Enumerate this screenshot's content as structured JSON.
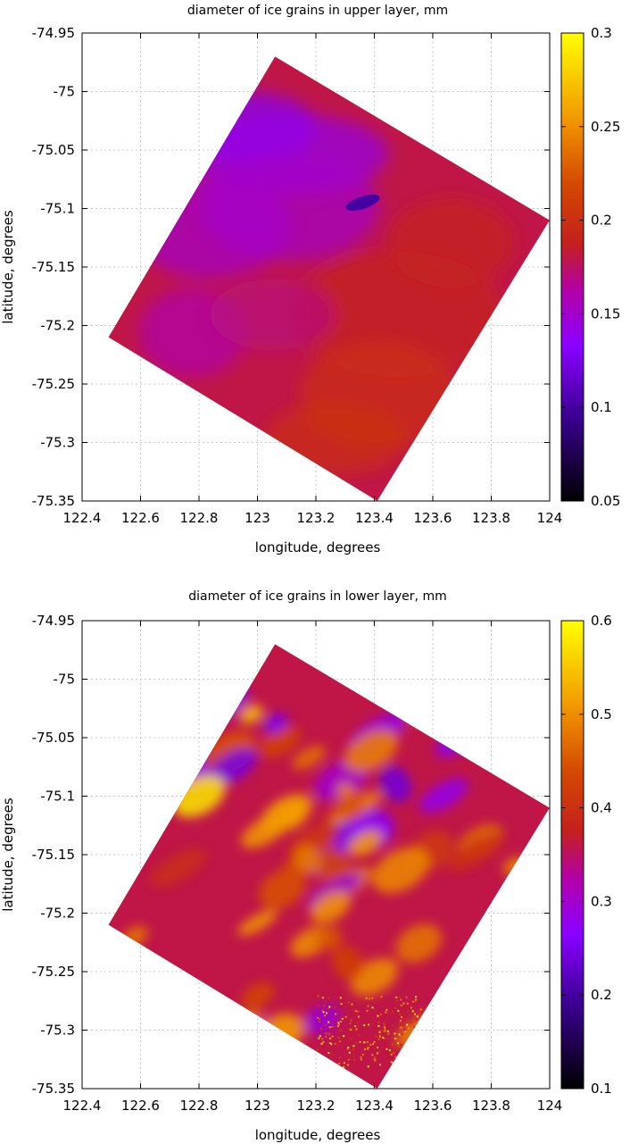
{
  "chart_data": [
    {
      "type": "heatmap",
      "title": "diameter of ice grains in upper layer, mm",
      "xlabel": "longitude, degrees",
      "ylabel": "latitude, degrees",
      "xlim": [
        122.4,
        124
      ],
      "ylim": [
        -75.35,
        -74.95
      ],
      "xticks": [
        "122.4",
        "122.6",
        "122.8",
        "123",
        "123.2",
        "123.4",
        "123.6",
        "123.8",
        "124"
      ],
      "yticks": [
        "-74.95",
        "-75",
        "-75.05",
        "-75.1",
        "-75.15",
        "-75.2",
        "-75.25",
        "-75.3",
        "-75.35"
      ],
      "colorbar": {
        "range": [
          0.05,
          0.3
        ],
        "ticks": [
          "0.3",
          "0.25",
          "0.2",
          "0.15",
          "0.1",
          "0.05"
        ],
        "colormap": "black-purple-red-orange-yellow"
      },
      "grid": true,
      "footprint": [
        [
          123.06,
          -74.97
        ],
        [
          124.0,
          -75.11
        ],
        [
          123.41,
          -75.35
        ],
        [
          122.49,
          -75.21
        ]
      ],
      "dominant_value": 0.18
    },
    {
      "type": "heatmap",
      "title": "diameter of ice grains in lower layer, mm",
      "xlabel": "longitude, degrees",
      "ylabel": "latitude, degrees",
      "xlim": [
        122.4,
        124
      ],
      "ylim": [
        -75.35,
        -74.95
      ],
      "xticks": [
        "122.4",
        "122.6",
        "122.8",
        "123",
        "123.2",
        "123.4",
        "123.6",
        "123.8",
        "124"
      ],
      "yticks": [
        "-74.95",
        "-75",
        "-75.05",
        "-75.1",
        "-75.15",
        "-75.2",
        "-75.25",
        "-75.3",
        "-75.35"
      ],
      "colorbar": {
        "range": [
          0.1,
          0.6
        ],
        "ticks": [
          "0.6",
          "0.5",
          "0.4",
          "0.3",
          "0.2",
          "0.1"
        ],
        "colormap": "black-purple-red-orange-yellow"
      },
      "grid": true,
      "footprint": [
        [
          123.06,
          -74.97
        ],
        [
          124.0,
          -75.11
        ],
        [
          123.41,
          -75.35
        ],
        [
          122.49,
          -75.21
        ]
      ],
      "dominant_value": 0.36
    }
  ]
}
